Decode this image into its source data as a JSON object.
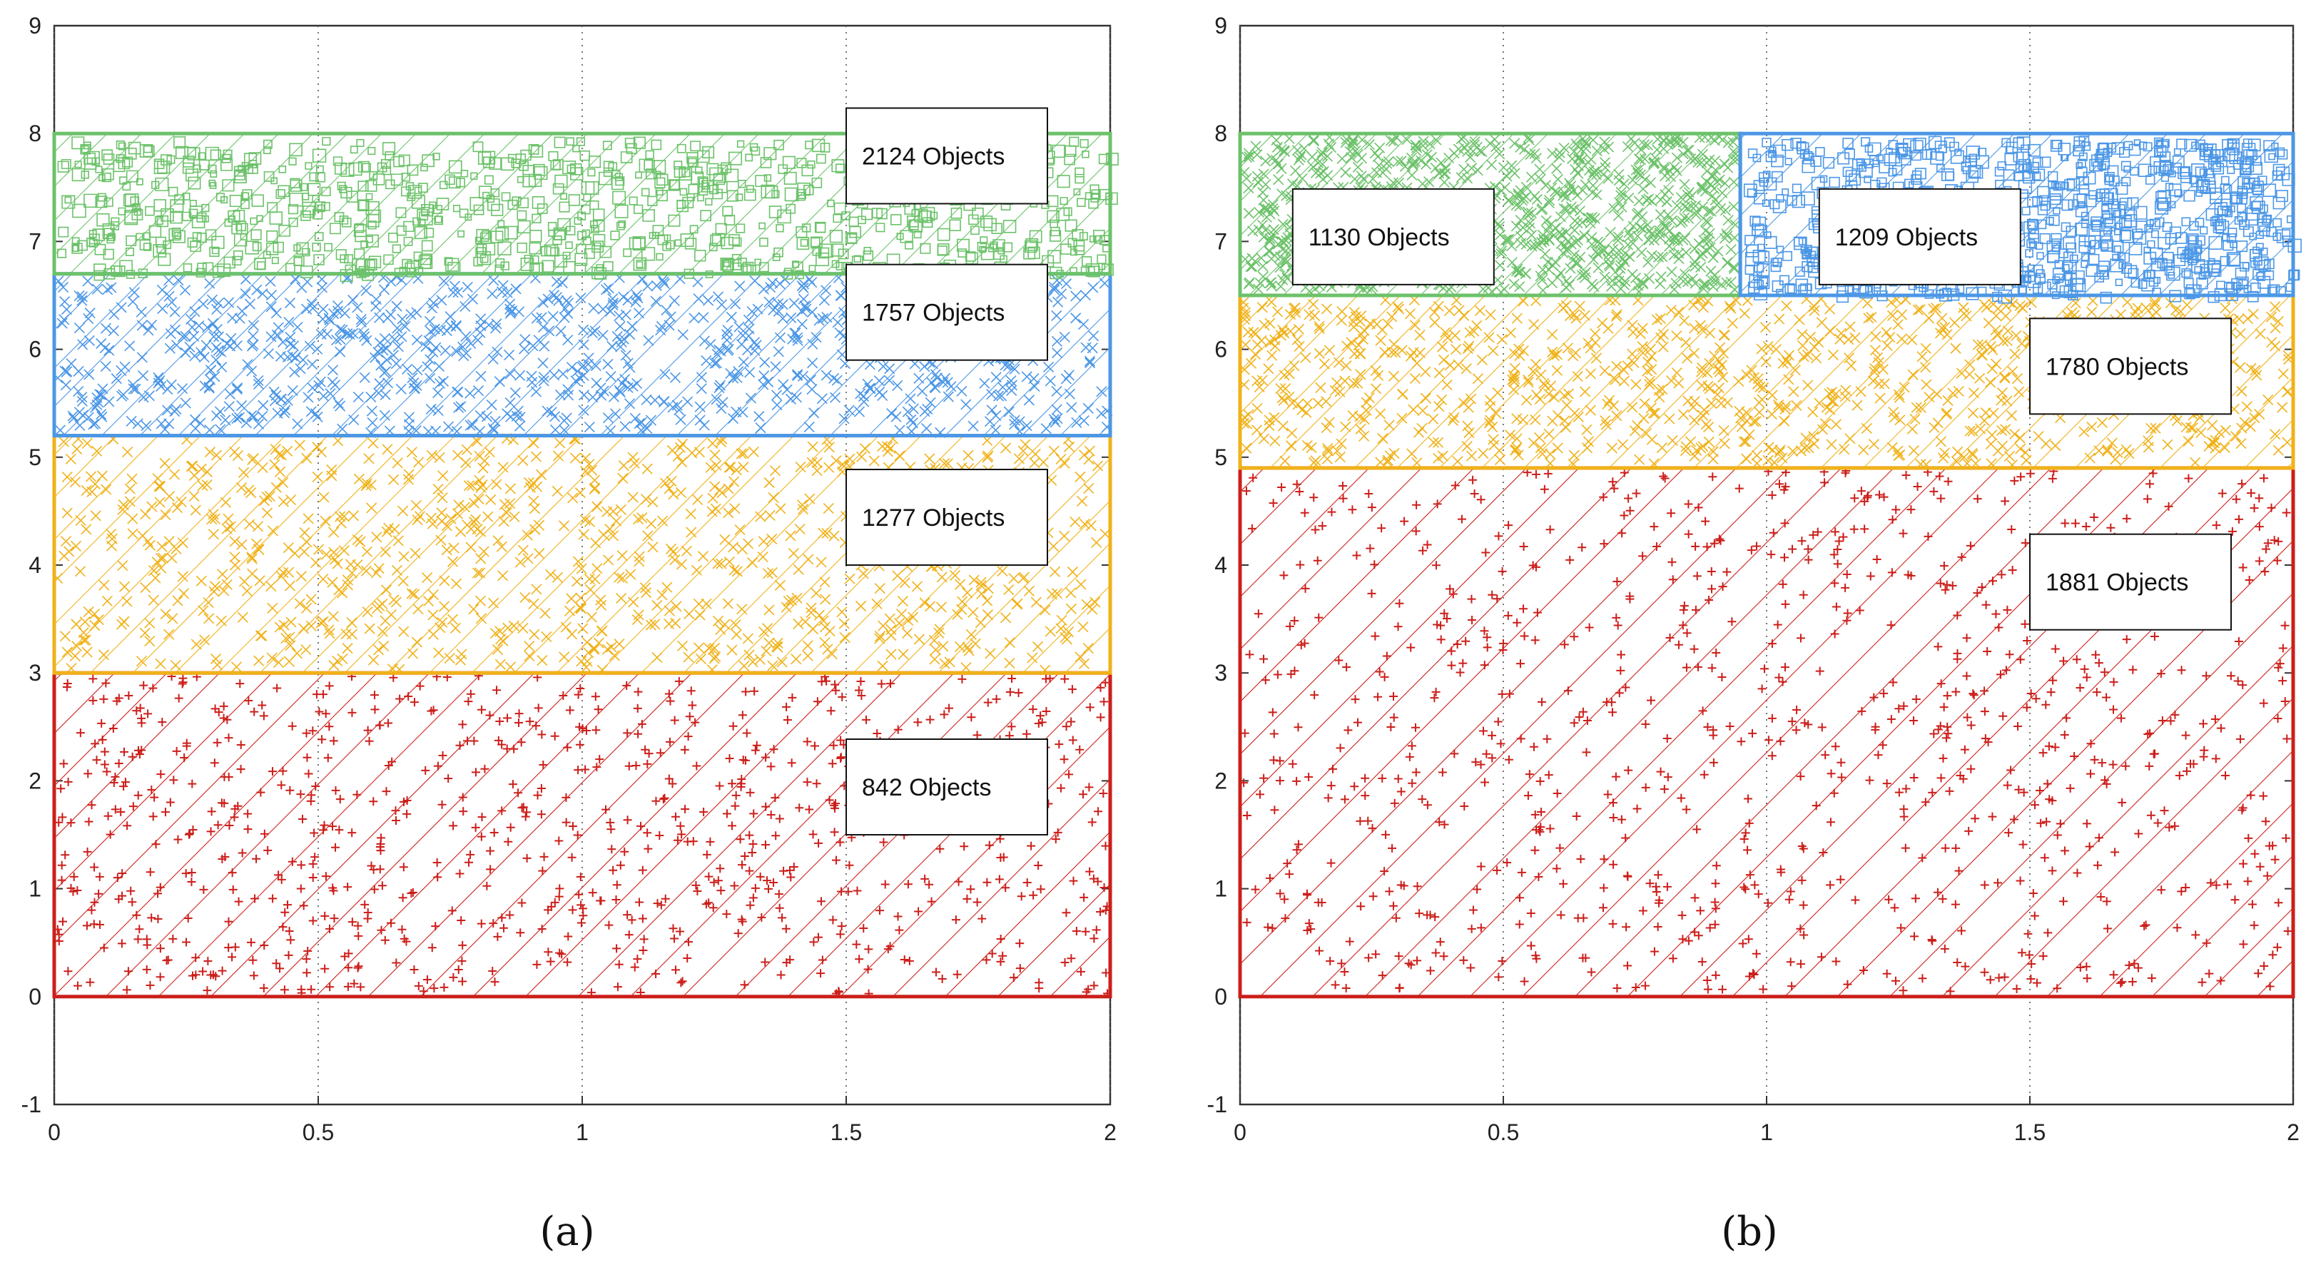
{
  "figure": {
    "panels": [
      "(a)",
      "(b)"
    ]
  },
  "colors": {
    "red": "#cc1f1a",
    "orange": "#f0b21a",
    "blue": "#4c97e6",
    "green": "#6cc26a",
    "axis": "#333333",
    "grid": "#555555"
  },
  "chart_data": [
    {
      "type": "region-partition",
      "panel": "(a)",
      "xlim": [
        0,
        2
      ],
      "ylim": [
        -1,
        9
      ],
      "xticks": [
        "0",
        "0.5",
        "1",
        "1.5",
        "2"
      ],
      "xtick_values": [
        0,
        0.5,
        1,
        1.5,
        2
      ],
      "yticks": [
        "-1",
        "0",
        "1",
        "2",
        "3",
        "4",
        "5",
        "6",
        "7",
        "8",
        "9"
      ],
      "ytick_values": [
        -1,
        0,
        1,
        2,
        3,
        4,
        5,
        6,
        7,
        8,
        9
      ],
      "grid": true,
      "regions": [
        {
          "name": "red",
          "color": "red",
          "marker": "+",
          "x0": 0,
          "x1": 2,
          "y0": 0,
          "y1": 3.0,
          "count": 842,
          "label": "842 Objects",
          "label_x": 1.5,
          "label_y": 1.5
        },
        {
          "name": "orange",
          "color": "orange",
          "marker": "x",
          "x0": 0,
          "x1": 2,
          "y0": 3.0,
          "y1": 5.2,
          "count": 1277,
          "label": "1277 Objects",
          "label_x": 1.5,
          "label_y": 4.0
        },
        {
          "name": "blue",
          "color": "blue",
          "marker": "x",
          "x0": 0,
          "x1": 2,
          "y0": 5.2,
          "y1": 6.7,
          "count": 1757,
          "label": "1757 Objects",
          "label_x": 1.5,
          "label_y": 5.9
        },
        {
          "name": "green",
          "color": "green",
          "marker": "box",
          "x0": 0,
          "x1": 2,
          "y0": 6.7,
          "y1": 8.0,
          "count": 2124,
          "label": "2124 Objects",
          "label_x": 1.5,
          "label_y": 7.35
        }
      ]
    },
    {
      "type": "region-partition",
      "panel": "(b)",
      "xlim": [
        0,
        2
      ],
      "ylim": [
        -1,
        9
      ],
      "xticks": [
        "0",
        "0.5",
        "1",
        "1.5",
        "2"
      ],
      "xtick_values": [
        0,
        0.5,
        1,
        1.5,
        2
      ],
      "yticks": [
        "-1",
        "0",
        "1",
        "2",
        "3",
        "4",
        "5",
        "6",
        "7",
        "8",
        "9"
      ],
      "ytick_values": [
        -1,
        0,
        1,
        2,
        3,
        4,
        5,
        6,
        7,
        8,
        9
      ],
      "grid": true,
      "regions": [
        {
          "name": "red",
          "color": "red",
          "marker": "+",
          "x0": 0,
          "x1": 2,
          "y0": 0,
          "y1": 4.9,
          "count": 1881,
          "label": "1881 Objects",
          "label_x": 1.5,
          "label_y": 3.4
        },
        {
          "name": "orange",
          "color": "orange",
          "marker": "x",
          "x0": 0,
          "x1": 2,
          "y0": 4.9,
          "y1": 6.5,
          "count": 1780,
          "label": "1780 Objects",
          "label_x": 1.5,
          "label_y": 5.4
        },
        {
          "name": "green",
          "color": "green",
          "marker": "x",
          "x0": 0,
          "x1": 0.95,
          "y0": 6.5,
          "y1": 8.0,
          "count": 1130,
          "label": "1130 Objects",
          "label_x": 0.1,
          "label_y": 6.6
        },
        {
          "name": "blue",
          "color": "blue",
          "marker": "box",
          "x0": 0.95,
          "x1": 2,
          "y0": 6.5,
          "y1": 8.0,
          "count": 1209,
          "label": "1209 Objects",
          "label_x": 1.1,
          "label_y": 6.6
        }
      ]
    }
  ]
}
